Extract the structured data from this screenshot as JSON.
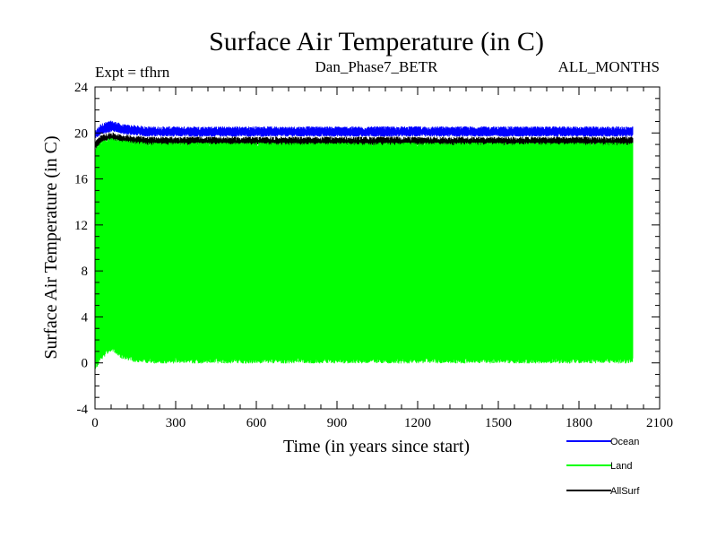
{
  "chart_data": {
    "type": "line",
    "title": "Surface Air Temperature (in C)",
    "expt_label": "Expt = tfhrn",
    "case_label": "Dan_Phase7_BETR",
    "months_label": "ALL_MONTHS",
    "xlabel": "Time (in years since start)",
    "ylabel": "Surface Air Temperature (in C)",
    "xlim": [
      0,
      2100
    ],
    "ylim": [
      -4,
      24
    ],
    "xticks": [
      "0",
      "300",
      "600",
      "900",
      "1200",
      "1500",
      "1800",
      "2100"
    ],
    "yticks": [
      "-4",
      "0",
      "4",
      "8",
      "12",
      "16",
      "20",
      "24"
    ],
    "x_tick_values": [
      0,
      300,
      600,
      900,
      1200,
      1500,
      1800,
      2100
    ],
    "y_tick_values": [
      -4,
      0,
      4,
      8,
      12,
      16,
      20,
      24
    ],
    "series": [
      {
        "name": "Ocean",
        "color": "#0000ff",
        "x": [
          0,
          20,
          40,
          60,
          80,
          100,
          150,
          200,
          400,
          600,
          800,
          1000,
          1200,
          1400,
          1600,
          1800,
          2000
        ],
        "min": [
          19.6,
          19.9,
          20.1,
          20.2,
          20.2,
          20.0,
          19.9,
          19.8,
          19.8,
          19.8,
          19.8,
          19.8,
          19.8,
          19.8,
          19.8,
          19.8,
          19.8
        ],
        "max": [
          20.0,
          20.6,
          20.8,
          20.9,
          20.8,
          20.6,
          20.5,
          20.4,
          20.4,
          20.4,
          20.4,
          20.4,
          20.4,
          20.4,
          20.4,
          20.4,
          20.4
        ]
      },
      {
        "name": "AllSurf",
        "color": "#000000",
        "x": [
          0,
          20,
          40,
          60,
          80,
          100,
          150,
          200,
          400,
          600,
          800,
          1000,
          1200,
          1400,
          1600,
          1800,
          2000
        ],
        "min": [
          18.7,
          19.1,
          19.4,
          19.5,
          19.4,
          19.2,
          19.1,
          19.0,
          19.0,
          19.0,
          19.0,
          19.0,
          19.0,
          19.0,
          19.0,
          19.0,
          19.0
        ],
        "max": [
          19.2,
          19.6,
          19.8,
          19.9,
          19.8,
          19.7,
          19.6,
          19.5,
          19.5,
          19.5,
          19.5,
          19.5,
          19.5,
          19.5,
          19.5,
          19.5,
          19.5
        ]
      },
      {
        "name": "Land",
        "color": "#00ff00",
        "x": [
          0,
          20,
          40,
          60,
          80,
          100,
          150,
          200,
          400,
          600,
          800,
          1000,
          1200,
          1400,
          1600,
          1800,
          2000
        ],
        "min": [
          -0.5,
          0.4,
          0.9,
          1.2,
          1.0,
          0.6,
          0.3,
          0.2,
          0.2,
          0.2,
          0.2,
          0.2,
          0.2,
          0.2,
          0.2,
          0.2,
          0.2
        ],
        "max": [
          18.5,
          19.0,
          19.3,
          19.4,
          19.3,
          19.2,
          19.1,
          19.0,
          19.0,
          19.0,
          19.0,
          19.0,
          19.0,
          19.0,
          19.0,
          19.0,
          19.0
        ]
      }
    ],
    "legend": {
      "position": "bottom-right",
      "entries": [
        {
          "label": "Ocean",
          "color": "#0000ff"
        },
        {
          "label": "Land",
          "color": "#00ff00"
        },
        {
          "label": "AllSurf",
          "color": "#000000"
        }
      ]
    }
  }
}
